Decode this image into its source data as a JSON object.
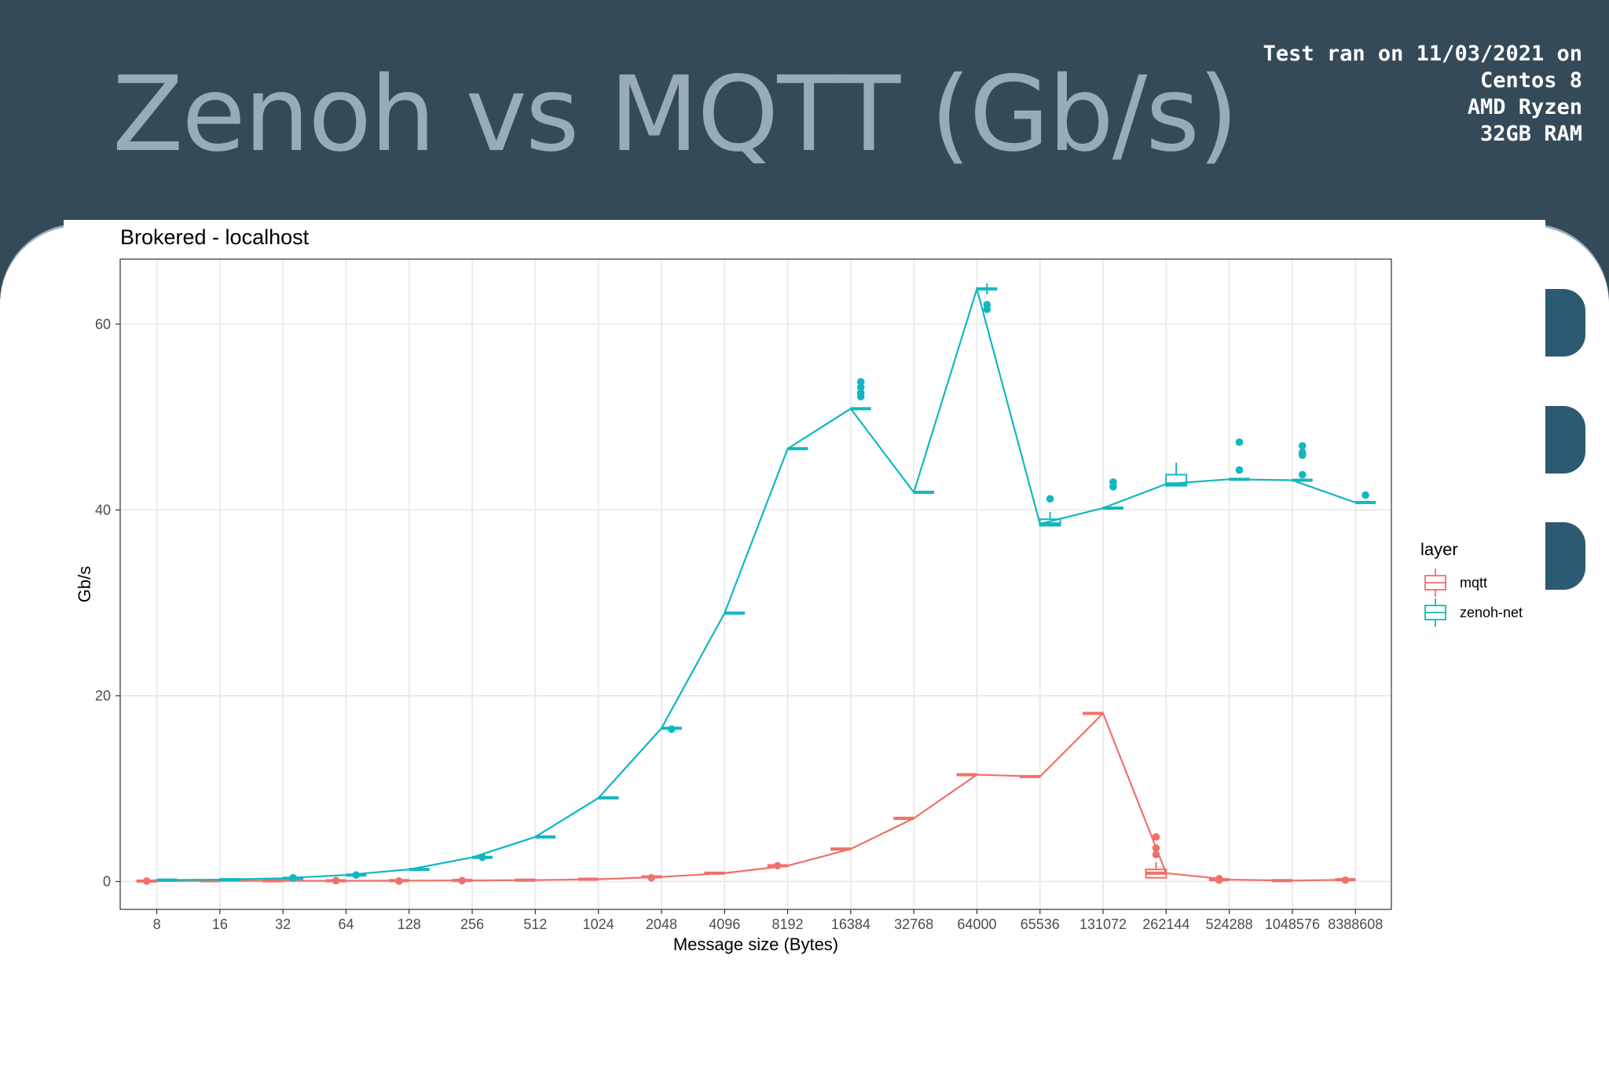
{
  "slide": {
    "title": "Zenoh vs MQTT (Gb/s)",
    "test_info": [
      "Test ran on 11/03/2021 on",
      "Centos 8",
      "AMD Ryzen",
      "32GB RAM"
    ]
  },
  "colors": {
    "mqtt": "#f0706a",
    "zenoh": "#12b7bf",
    "header_bg": "#344a58",
    "title": "#97abb9",
    "tab": "#2d5a73"
  },
  "chart_data": {
    "type": "line",
    "subtitle": "Brokered - localhost",
    "xlabel": "Message size (Bytes)",
    "ylabel": "Gb/s",
    "categories": [
      "8",
      "16",
      "32",
      "64",
      "128",
      "256",
      "512",
      "1024",
      "2048",
      "4096",
      "8192",
      "16384",
      "32768",
      "64000",
      "65536",
      "131072",
      "262144",
      "524288",
      "1048576",
      "8388608"
    ],
    "ylim": [
      -3,
      67
    ],
    "yticks": [
      0,
      20,
      40,
      60
    ],
    "grid": true,
    "legend_title": "layer",
    "legend_position": "right",
    "series": [
      {
        "name": "mqtt",
        "values": [
          0.05,
          0.08,
          0.08,
          0.08,
          0.1,
          0.12,
          0.15,
          0.25,
          0.5,
          0.9,
          1.7,
          3.5,
          6.8,
          11.5,
          11.3,
          18.1,
          0.9,
          0.2,
          0.1,
          0.2
        ],
        "outliers": [
          [
            0,
            0.05
          ],
          [
            3,
            0.1
          ],
          [
            4,
            0.05
          ],
          [
            5,
            0.1
          ],
          [
            8,
            0.4
          ],
          [
            10,
            1.7
          ],
          [
            16,
            4.8
          ],
          [
            16,
            3.6
          ],
          [
            16,
            2.9
          ],
          [
            17,
            0.3
          ],
          [
            17,
            0.15
          ],
          [
            19,
            0.15
          ]
        ]
      },
      {
        "name": "zenoh-net",
        "values": [
          0.15,
          0.2,
          0.35,
          0.7,
          1.3,
          2.6,
          4.8,
          9.0,
          16.5,
          28.9,
          46.6,
          50.9,
          41.9,
          63.8,
          38.5,
          40.2,
          42.8,
          43.3,
          43.2,
          40.8
        ],
        "outliers": [
          [
            2,
            0.4
          ],
          [
            3,
            0.7
          ],
          [
            5,
            2.6
          ],
          [
            8,
            16.4
          ],
          [
            11,
            53.8
          ],
          [
            11,
            53.2
          ],
          [
            11,
            52.6
          ],
          [
            11,
            52.2
          ],
          [
            13,
            62.1
          ],
          [
            13,
            61.6
          ],
          [
            14,
            41.2
          ],
          [
            15,
            43.0
          ],
          [
            15,
            42.5
          ],
          [
            17,
            47.3
          ],
          [
            17,
            44.3
          ],
          [
            18,
            46.9
          ],
          [
            18,
            46.2
          ],
          [
            18,
            45.9
          ],
          [
            18,
            43.8
          ],
          [
            19,
            41.6
          ]
        ]
      }
    ]
  }
}
